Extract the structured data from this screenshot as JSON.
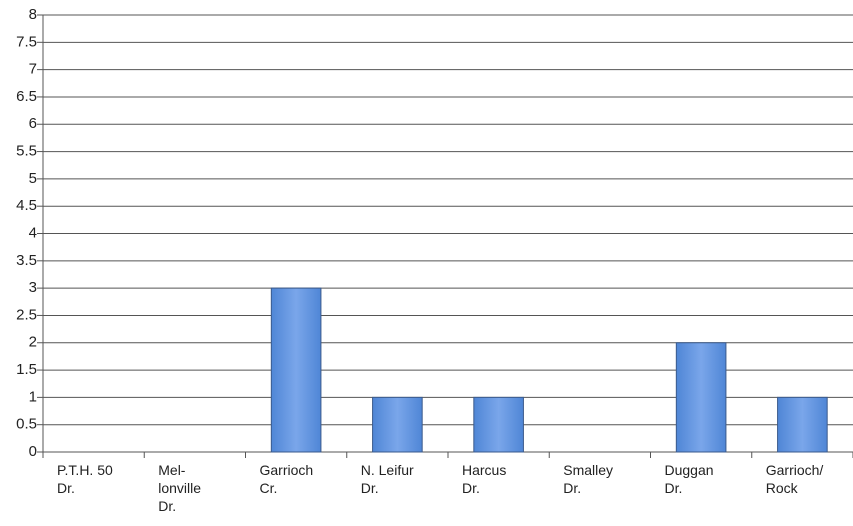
{
  "chart_data": {
    "type": "bar",
    "categories": [
      "P.T.H. 50\nDr.",
      "Mel-\nlonville\nDr.",
      "Garrioch\nCr.",
      "N. Leifur\nDr.",
      "Harcus\nDr.",
      "Smalley\nDr.",
      "Duggan\nDr.",
      "Garrioch/\nRock"
    ],
    "values": [
      0,
      0,
      3,
      1,
      1,
      0,
      2,
      1
    ],
    "color": "#6a98e0",
    "ylim": [
      0,
      8
    ],
    "yticks": [
      0,
      0.5,
      1,
      1.5,
      2,
      2.5,
      3,
      3.5,
      4,
      4.5,
      5,
      5.5,
      6,
      6.5,
      7,
      7.5,
      8
    ],
    "grid": true
  }
}
